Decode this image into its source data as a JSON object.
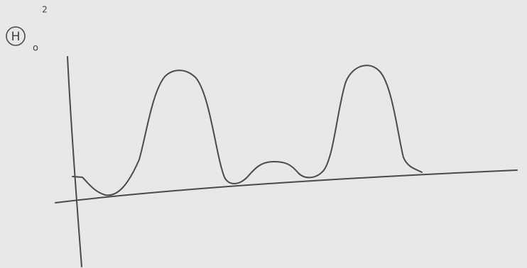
{
  "label": {
    "symbol": "H",
    "superscript": "2",
    "subscript": "o"
  }
}
